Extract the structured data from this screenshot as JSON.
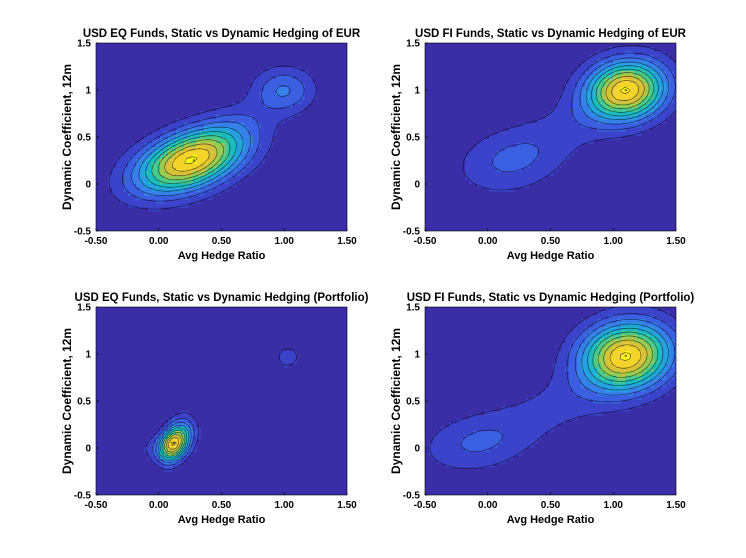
{
  "figure": {
    "colors": {
      "background": "#3a2da6",
      "contour_line": "#000000",
      "palette": [
        "#3a2da6",
        "#3a43c9",
        "#3a5fe1",
        "#3680ea",
        "#25a1e0",
        "#1abcbf",
        "#47ca8e",
        "#95cd52",
        "#d6c13a",
        "#f5d42a",
        "#f9fb15"
      ]
    }
  },
  "chart_data": [
    {
      "id": "eq-eur",
      "type": "contour",
      "title": "USD EQ Funds, Static vs Dynamic Hedging of EUR",
      "xlabel": "Avg Hedge Ratio",
      "ylabel": "Dynamic Coefficient, 12m",
      "xlim": [
        -0.5,
        1.5
      ],
      "ylim": [
        -0.5,
        1.5
      ],
      "xticks": [
        "-0.50",
        "0.00",
        "0.50",
        "1.00",
        "1.50"
      ],
      "yticks": [
        "-0.5",
        "0",
        "0.5",
        "1",
        "1.5"
      ],
      "levels": 10,
      "density_components": [
        {
          "x": 0.25,
          "y": 0.25,
          "sx": 0.3,
          "sy": 0.24,
          "rho": 0.45,
          "w": 1.0
        },
        {
          "x": 1.0,
          "y": 1.0,
          "sx": 0.17,
          "sy": 0.17,
          "rho": 0.0,
          "w": 0.3
        },
        {
          "x": 0.62,
          "y": 0.65,
          "sx": 0.22,
          "sy": 0.2,
          "rho": 0.5,
          "w": 0.08
        }
      ],
      "peak": {
        "x": 0.28,
        "y": 0.25
      }
    },
    {
      "id": "fi-eur",
      "type": "contour",
      "title": "USD FI Funds, Static vs Dynamic Hedging of EUR",
      "xlabel": "Avg Hedge Ratio",
      "ylabel": "Dynamic Coefficient, 12m",
      "xlim": [
        -0.5,
        1.5
      ],
      "ylim": [
        -0.5,
        1.5
      ],
      "xticks": [
        "-0.50",
        "0.00",
        "0.50",
        "1.00",
        "1.50"
      ],
      "yticks": [
        "-0.5",
        "0",
        "0.5",
        "1",
        "1.5"
      ],
      "levels": 10,
      "density_components": [
        {
          "x": 1.1,
          "y": 1.0,
          "sx": 0.22,
          "sy": 0.22,
          "rho": 0.1,
          "w": 1.0
        },
        {
          "x": 0.18,
          "y": 0.25,
          "sx": 0.3,
          "sy": 0.25,
          "rho": 0.2,
          "w": 0.22
        },
        {
          "x": 0.7,
          "y": 0.65,
          "sx": 0.3,
          "sy": 0.25,
          "rho": 0.4,
          "w": 0.1
        }
      ],
      "peak": {
        "x": 1.1,
        "y": 1.0
      }
    },
    {
      "id": "eq-portfolio",
      "type": "contour",
      "title": "USD EQ Funds, Static vs Dynamic Hedging (Portfolio)",
      "xlabel": "Avg Hedge Ratio",
      "ylabel": "Dynamic Coefficient, 12m",
      "xlim": [
        -0.5,
        1.5
      ],
      "ylim": [
        -0.5,
        1.5
      ],
      "xticks": [
        "-0.50",
        "0.00",
        "0.50",
        "1.00",
        "1.50"
      ],
      "yticks": [
        "-0.5",
        "0",
        "0.5",
        "1",
        "1.5"
      ],
      "levels": 10,
      "density_components": [
        {
          "x": 0.12,
          "y": 0.05,
          "sx": 0.08,
          "sy": 0.13,
          "rho": 0.3,
          "w": 1.0
        },
        {
          "x": 0.0,
          "y": 0.0,
          "sx": 0.13,
          "sy": 0.09,
          "rho": 0.0,
          "w": 0.12
        },
        {
          "x": 0.22,
          "y": 0.22,
          "sx": 0.08,
          "sy": 0.14,
          "rho": 0.0,
          "w": 0.12
        },
        {
          "x": 1.03,
          "y": 0.97,
          "sx": 0.07,
          "sy": 0.09,
          "rho": 0.0,
          "w": 0.17
        },
        {
          "x": 0.88,
          "y": 0.78,
          "sx": 0.09,
          "sy": 0.07,
          "rho": 0.0,
          "w": 0.05
        }
      ],
      "peak": {
        "x": 0.12,
        "y": 0.05
      }
    },
    {
      "id": "fi-portfolio",
      "type": "contour",
      "title": "USD FI Funds, Static vs Dynamic Hedging (Portfolio)",
      "xlabel": "Avg Hedge Ratio",
      "ylabel": "Dynamic Coefficient, 12m",
      "xlim": [
        -0.5,
        1.5
      ],
      "ylim": [
        -0.5,
        1.5
      ],
      "xticks": [
        "-0.50",
        "0.00",
        "0.50",
        "1.00",
        "1.50"
      ],
      "yticks": [
        "-0.5",
        "0",
        "0.5",
        "1",
        "1.5"
      ],
      "levels": 10,
      "density_components": [
        {
          "x": 1.1,
          "y": 0.98,
          "sx": 0.25,
          "sy": 0.25,
          "rho": 0.1,
          "w": 1.0
        },
        {
          "x": -0.1,
          "y": 0.05,
          "sx": 0.3,
          "sy": 0.22,
          "rho": 0.2,
          "w": 0.2
        },
        {
          "x": 0.55,
          "y": 0.45,
          "sx": 0.38,
          "sy": 0.28,
          "rho": 0.5,
          "w": 0.12
        }
      ],
      "peak": {
        "x": 1.1,
        "y": 0.98
      }
    }
  ]
}
